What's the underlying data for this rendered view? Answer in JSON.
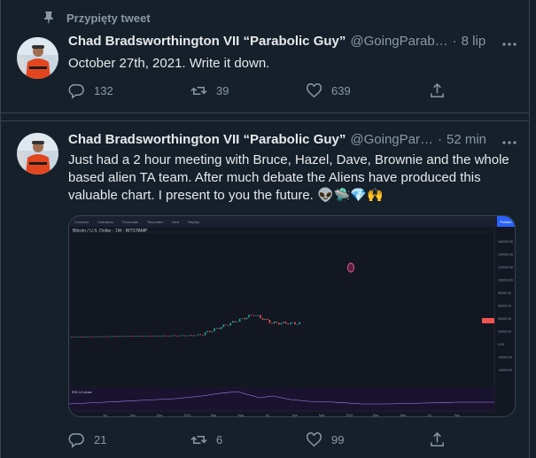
{
  "pinned_label": "Przypięty tweet",
  "tweets": [
    {
      "name": "Chad Bradsworthington VII “Parabolic Guy”",
      "handle": "@GoingParab…",
      "sep": "·",
      "time": "8 lip",
      "text": "October 27th, 2021. Write it down.",
      "replies": "132",
      "retweets": "39",
      "likes": "639"
    },
    {
      "name": "Chad Bradsworthington VII “Parabolic Guy”",
      "handle": "@GoingPar…",
      "sep": "·",
      "time": "52 min",
      "text": "Just had a 2 hour meeting with Bruce, Hazel, Dave, Brownie and the whole based alien TA team. After much debate the Aliens have produced this valuable chart. I present to you the future. 👽🛸💎🙌",
      "replies": "21",
      "retweets": "6",
      "likes": "99"
    }
  ],
  "chart": {
    "title": "Bitcoin / U.S. Dollar · 1W · BITSTAMP",
    "publish_label": "Publish",
    "toolbar": [
      "Compare",
      "Indicators",
      "Financials",
      "Templates",
      "Alert",
      "Replay"
    ],
    "indicator_label": "RSI 14 close",
    "x_ticks": [
      "Jul",
      "Sep",
      "Nov",
      "2021",
      "Mar",
      "May",
      "Jul",
      "Sep",
      "Nov",
      "2022",
      "Mar",
      "May",
      "Jul",
      "Sep"
    ],
    "price_ticks": [
      "160000.00",
      "140000.00",
      "120000.00",
      "100000.00",
      "80000.00",
      "60000.00",
      "40000.00",
      "20000.00",
      "0.00",
      "-20000.00",
      "-40000.00"
    ],
    "last_price": "33076.09"
  },
  "colors": {
    "bg": "#15202b",
    "text": "#e7e9ea",
    "muted": "#8b98a5",
    "border": "#38444d",
    "up": "#26a69a",
    "down": "#ef5350",
    "accent": "#2962ff"
  }
}
